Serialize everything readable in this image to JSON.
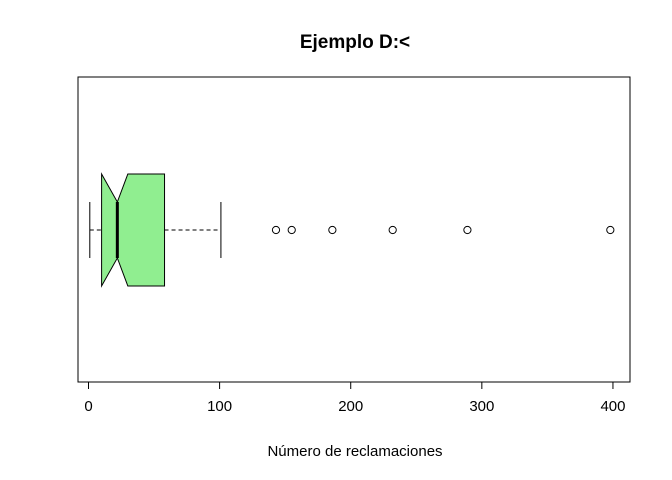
{
  "chart_data": {
    "type": "boxplot",
    "title": "Ejemplo D:<",
    "xlabel": "Número de reclamaciones",
    "ylabel": "",
    "orientation": "horizontal",
    "notch": true,
    "xlim": [
      -8,
      413
    ],
    "x_ticks": [
      0,
      100,
      200,
      300,
      400
    ],
    "x_tick_labels": [
      "0",
      "100",
      "200",
      "300",
      "400"
    ],
    "box_color": "#90EE90",
    "grid": false,
    "legend": "none",
    "stats": {
      "whisker_low": 1,
      "q1": 10,
      "median": 22,
      "q3": 58,
      "whisker_high": 101,
      "notch_low": 10,
      "notch_high": 30
    },
    "outliers": [
      143,
      155,
      186,
      232,
      289,
      398
    ]
  }
}
